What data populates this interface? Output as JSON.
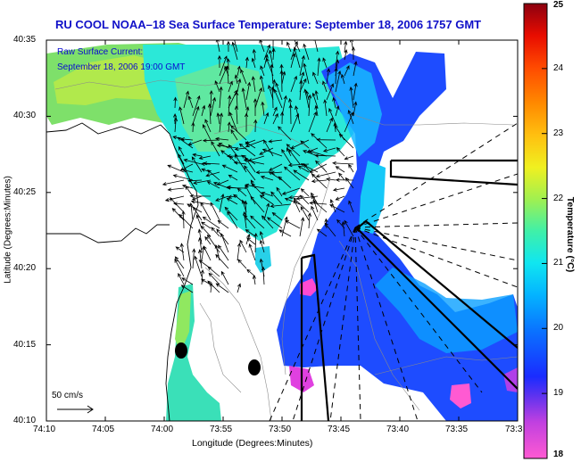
{
  "title": "RU COOL  NOAA–18  Sea Surface Temperature:  September 18, 2006 1757 GMT",
  "legend": {
    "current_label": "Raw Surface Current:",
    "current_time": "September 18, 2006 19:00 GMT",
    "scale_label": "50 cm/s"
  },
  "axes": {
    "xlabel": "Longitude (Degrees:Minutes)",
    "ylabel": "Latitude (Degrees:Minutes)",
    "x_ticks": [
      "74:10",
      "74:05",
      "74:00",
      "73:55",
      "73:50",
      "73:45",
      "73:40",
      "73:35",
      "73:3"
    ],
    "y_ticks": [
      "40:35",
      "40:30",
      "40:25",
      "40:20",
      "40:15",
      "40:10"
    ]
  },
  "colorbar": {
    "label": "Temperature (°C)",
    "ticks": [
      "25",
      "24",
      "23",
      "22",
      "21",
      "20",
      "19",
      "18"
    ],
    "min": 18,
    "max": 25
  },
  "colors": {
    "title": "#1010c8",
    "legend_text": "#0a0ad0",
    "land": "#ffffff"
  }
}
